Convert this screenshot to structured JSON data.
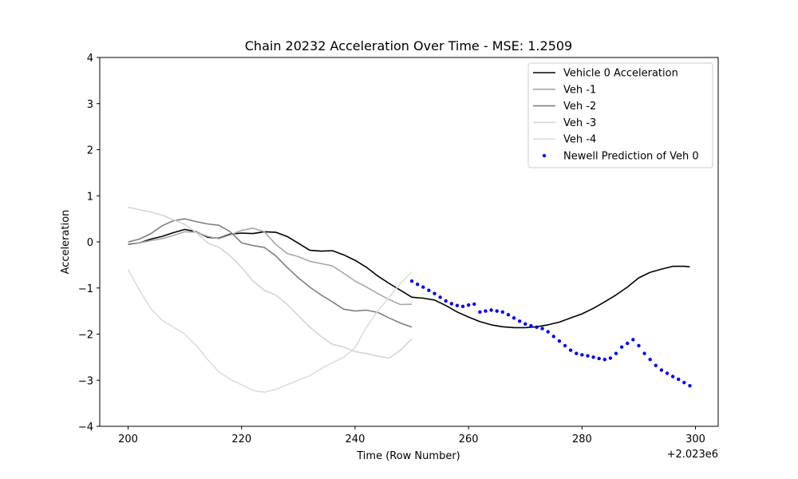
{
  "chart_data": {
    "type": "line",
    "title": "Chain 20232 Acceleration Over Time - MSE: 1.2509",
    "xlabel": "Time (Row Number)",
    "ylabel": "Acceleration",
    "x_offset_label": "+2.023e6",
    "xlim": [
      195,
      304
    ],
    "ylim": [
      -4,
      4
    ],
    "xticks": [
      200,
      220,
      240,
      260,
      280,
      300
    ],
    "yticks": [
      -4,
      -3,
      -2,
      -1,
      0,
      1,
      2,
      3,
      4
    ],
    "grid": false,
    "legend": "top-right",
    "series": [
      {
        "name": "Vehicle 0 Acceleration",
        "style": "line",
        "color": "#000000",
        "x": [
          200,
          202,
          204,
          206,
          208,
          210,
          212,
          214,
          216,
          218,
          220,
          222,
          224,
          226,
          228,
          230,
          232,
          234,
          236,
          238,
          240,
          242,
          244,
          246,
          248,
          250,
          252,
          254,
          256,
          258,
          260,
          262,
          264,
          266,
          268,
          270,
          272,
          274,
          276,
          278,
          280,
          282,
          284,
          286,
          288,
          290,
          292,
          294,
          296,
          298,
          299
        ],
        "y": [
          -0.05,
          -0.02,
          0.06,
          0.12,
          0.2,
          0.27,
          0.22,
          0.1,
          0.08,
          0.17,
          0.19,
          0.18,
          0.22,
          0.21,
          0.12,
          -0.03,
          -0.18,
          -0.2,
          -0.19,
          -0.28,
          -0.4,
          -0.55,
          -0.74,
          -0.9,
          -1.05,
          -1.2,
          -1.22,
          -1.26,
          -1.38,
          -1.52,
          -1.63,
          -1.73,
          -1.8,
          -1.84,
          -1.86,
          -1.86,
          -1.84,
          -1.8,
          -1.74,
          -1.65,
          -1.56,
          -1.44,
          -1.3,
          -1.15,
          -0.98,
          -0.78,
          -0.66,
          -0.59,
          -0.53,
          -0.53,
          -0.54
        ]
      },
      {
        "name": "Veh -1",
        "style": "line",
        "color": "#a6a6a6",
        "x": [
          200,
          202,
          204,
          206,
          208,
          210,
          212,
          214,
          216,
          218,
          220,
          222,
          224,
          226,
          228,
          230,
          232,
          234,
          236,
          238,
          240,
          242,
          244,
          246,
          248,
          250
        ],
        "y": [
          -0.04,
          -0.02,
          0.03,
          0.07,
          0.14,
          0.22,
          0.21,
          0.12,
          0.07,
          0.15,
          0.25,
          0.3,
          0.22,
          -0.05,
          -0.25,
          -0.32,
          -0.42,
          -0.47,
          -0.52,
          -0.68,
          -0.85,
          -0.98,
          -1.12,
          -1.25,
          -1.36,
          -1.35
        ]
      },
      {
        "name": "Veh -2",
        "style": "line",
        "color": "#7f7f7f",
        "x": [
          200,
          202,
          204,
          206,
          208,
          210,
          212,
          214,
          216,
          218,
          220,
          222,
          224,
          226,
          228,
          230,
          232,
          234,
          236,
          238,
          240,
          242,
          244,
          246,
          248,
          250
        ],
        "y": [
          0.0,
          0.06,
          0.18,
          0.35,
          0.46,
          0.5,
          0.44,
          0.39,
          0.36,
          0.22,
          -0.02,
          -0.08,
          -0.12,
          -0.3,
          -0.55,
          -0.78,
          -0.98,
          -1.15,
          -1.3,
          -1.46,
          -1.5,
          -1.48,
          -1.53,
          -1.65,
          -1.76,
          -1.85
        ]
      },
      {
        "name": "Veh -3",
        "style": "line",
        "color": "#d4d4d4",
        "x": [
          200,
          202,
          204,
          206,
          208,
          210,
          212,
          214,
          216,
          218,
          220,
          222,
          224,
          226,
          228,
          230,
          232,
          234,
          236,
          238,
          240,
          242,
          244,
          246,
          248,
          250
        ],
        "y": [
          0.75,
          0.7,
          0.65,
          0.58,
          0.48,
          0.38,
          0.2,
          -0.02,
          -0.12,
          -0.3,
          -0.55,
          -0.85,
          -1.05,
          -1.15,
          -1.35,
          -1.6,
          -1.85,
          -2.05,
          -2.22,
          -2.28,
          -2.38,
          -2.42,
          -2.48,
          -2.52,
          -2.35,
          -2.1
        ]
      },
      {
        "name": "Veh -4",
        "style": "line",
        "color": "#dcdcdc",
        "x": [
          200,
          202,
          204,
          206,
          208,
          210,
          212,
          214,
          216,
          218,
          220,
          222,
          224,
          226,
          228,
          230,
          232,
          234,
          236,
          238,
          240,
          242,
          244,
          246,
          248,
          250
        ],
        "y": [
          -0.6,
          -1.05,
          -1.45,
          -1.7,
          -1.85,
          -2.0,
          -2.25,
          -2.55,
          -2.82,
          -2.98,
          -3.1,
          -3.22,
          -3.26,
          -3.2,
          -3.1,
          -3.0,
          -2.9,
          -2.75,
          -2.62,
          -2.5,
          -2.3,
          -1.85,
          -1.5,
          -1.2,
          -0.9,
          -0.65
        ]
      },
      {
        "name": "Newell Prediction of Veh 0",
        "style": "dots",
        "color": "#0000ff",
        "x": [
          250,
          251,
          252,
          253,
          254,
          255,
          256,
          257,
          258,
          259,
          260,
          261,
          262,
          263,
          264,
          265,
          266,
          267,
          268,
          269,
          270,
          271,
          272,
          273,
          274,
          275,
          276,
          277,
          278,
          279,
          280,
          281,
          282,
          283,
          284,
          285,
          286,
          287,
          288,
          289,
          290,
          291,
          292,
          293,
          294,
          295,
          296,
          297,
          298,
          299
        ],
        "y": [
          -0.85,
          -0.92,
          -0.98,
          -1.05,
          -1.12,
          -1.2,
          -1.28,
          -1.34,
          -1.38,
          -1.4,
          -1.37,
          -1.35,
          -1.52,
          -1.5,
          -1.48,
          -1.5,
          -1.52,
          -1.58,
          -1.65,
          -1.72,
          -1.78,
          -1.82,
          -1.85,
          -1.88,
          -1.95,
          -2.05,
          -2.15,
          -2.25,
          -2.35,
          -2.42,
          -2.45,
          -2.47,
          -2.5,
          -2.53,
          -2.55,
          -2.52,
          -2.42,
          -2.28,
          -2.2,
          -2.12,
          -2.25,
          -2.42,
          -2.55,
          -2.68,
          -2.78,
          -2.85,
          -2.92,
          -2.98,
          -3.05,
          -3.12
        ]
      }
    ]
  }
}
